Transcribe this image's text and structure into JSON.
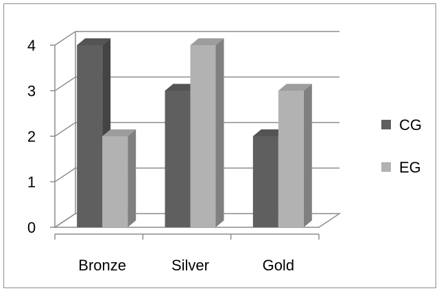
{
  "chart_data": {
    "type": "bar",
    "title": "",
    "xlabel": "",
    "ylabel": "",
    "categories": [
      "Bronze",
      "Silver",
      "Gold"
    ],
    "series": [
      {
        "name": "CG",
        "values": [
          4,
          3,
          2
        ],
        "color": "#5f5f5f"
      },
      {
        "name": "EG",
        "values": [
          2,
          4,
          3
        ],
        "color": "#b2b2b2"
      }
    ],
    "ylim": [
      0,
      4
    ],
    "yticks": [
      "0",
      "1",
      "2",
      "3",
      "4"
    ],
    "grid": true,
    "style": "3d-clustered-column",
    "legend_position": "right"
  }
}
